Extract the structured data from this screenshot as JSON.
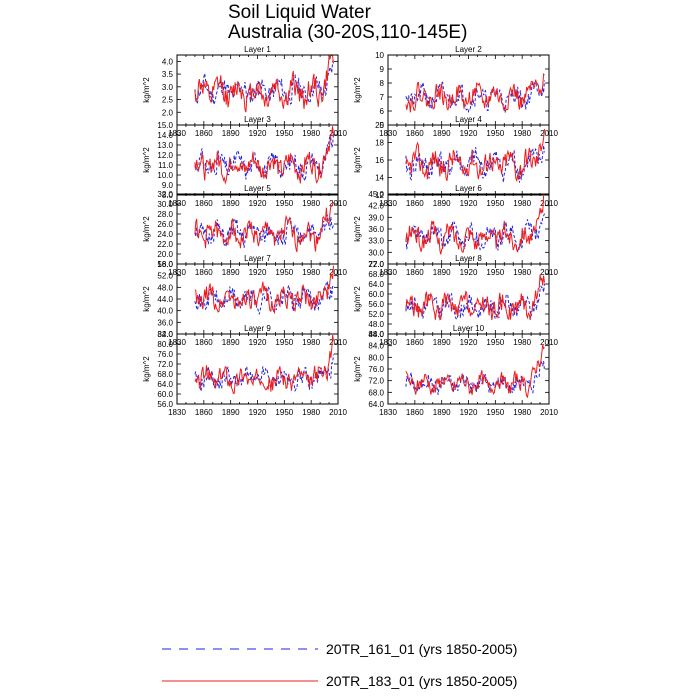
{
  "title": {
    "line1": "Soil Liquid Water",
    "line2": "Australia (30-20S,110-145E)"
  },
  "colors": {
    "series_161": "#2222dd",
    "series_183": "#ee1c1c",
    "axis": "#000000"
  },
  "legend": {
    "items": [
      {
        "label": "20TR_161_01 (yrs 1850-2005)",
        "color": "#2222dd",
        "style": "dashed"
      },
      {
        "label": "20TR_183_01 (yrs 1850-2005)",
        "color": "#ee1c1c",
        "style": "solid"
      }
    ]
  },
  "chart_data": [
    {
      "type": "line",
      "title": "Layer 1",
      "ylabel": "kg/m^2",
      "xlabel": "",
      "xlim": [
        1830,
        2010
      ],
      "x_ticks": [
        "1830",
        "1860",
        "1890",
        "1920",
        "1950",
        "1980",
        "2010"
      ],
      "ylim": [
        1.5,
        4.25
      ],
      "y_ticks": [
        "2.0",
        "2.5",
        "3.0",
        "3.5",
        "4.0"
      ],
      "series": [
        {
          "name": "20TR_161_01",
          "mean": 2.85,
          "amp": 0.45,
          "end": 3.7,
          "seed": 11
        },
        {
          "name": "20TR_183_01",
          "mean": 2.8,
          "amp": 0.55,
          "end": 4.2,
          "seed": 12
        }
      ]
    },
    {
      "type": "line",
      "title": "Layer 2",
      "ylabel": "kg/m^2",
      "xlabel": "",
      "xlim": [
        1830,
        2010
      ],
      "x_ticks": [
        "1830",
        "1860",
        "1890",
        "1920",
        "1950",
        "1980",
        "2010"
      ],
      "ylim": [
        5,
        10
      ],
      "y_ticks": [
        "5",
        "6",
        "7",
        "8",
        "9",
        "10"
      ],
      "series": [
        {
          "name": "20TR_161_01",
          "mean": 7.0,
          "amp": 0.7,
          "end": 8.3,
          "seed": 21
        },
        {
          "name": "20TR_183_01",
          "mean": 7.0,
          "amp": 0.8,
          "end": 9.1,
          "seed": 22
        }
      ]
    },
    {
      "type": "line",
      "title": "Layer 3",
      "ylabel": "kg/m^2",
      "xlabel": "",
      "xlim": [
        1830,
        2010
      ],
      "x_ticks": [
        "1830",
        "1860",
        "1890",
        "1920",
        "1950",
        "1980",
        "2010"
      ],
      "ylim": [
        8,
        15
      ],
      "y_ticks": [
        "8.0",
        "9.0",
        "10.0",
        "11.0",
        "12.0",
        "13.0",
        "14.0",
        "15.0"
      ],
      "series": [
        {
          "name": "20TR_161_01",
          "mean": 11.0,
          "amp": 1.1,
          "end": 13.0,
          "seed": 31
        },
        {
          "name": "20TR_183_01",
          "mean": 11.0,
          "amp": 1.2,
          "end": 14.2,
          "seed": 32
        }
      ]
    },
    {
      "type": "line",
      "title": "Layer 4",
      "ylabel": "kg/m^2",
      "xlabel": "",
      "xlim": [
        1830,
        2010
      ],
      "x_ticks": [
        "1830",
        "1860",
        "1890",
        "1920",
        "1950",
        "1980",
        "2010"
      ],
      "ylim": [
        12,
        20
      ],
      "y_ticks": [
        "12",
        "14",
        "16",
        "18",
        "20"
      ],
      "series": [
        {
          "name": "20TR_161_01",
          "mean": 15.5,
          "amp": 1.4,
          "end": 17.5,
          "seed": 41
        },
        {
          "name": "20TR_183_01",
          "mean": 15.5,
          "amp": 1.5,
          "end": 19.3,
          "seed": 42
        }
      ]
    },
    {
      "type": "line",
      "title": "Layer 5",
      "ylabel": "kg/m^2",
      "xlabel": "",
      "xlim": [
        1830,
        2010
      ],
      "x_ticks": [
        "1830",
        "1860",
        "1890",
        "1920",
        "1950",
        "1980",
        "2010"
      ],
      "ylim": [
        18,
        32
      ],
      "y_ticks": [
        "18.0",
        "20.0",
        "22.0",
        "24.0",
        "26.0",
        "28.0",
        "30.0",
        "32.0"
      ],
      "series": [
        {
          "name": "20TR_161_01",
          "mean": 24.0,
          "amp": 2.2,
          "end": 28.0,
          "seed": 51
        },
        {
          "name": "20TR_183_01",
          "mean": 24.0,
          "amp": 2.4,
          "end": 31.0,
          "seed": 52
        }
      ]
    },
    {
      "type": "line",
      "title": "Layer 6",
      "ylabel": "kg/m^2",
      "xlabel": "",
      "xlim": [
        1830,
        2010
      ],
      "x_ticks": [
        "1830",
        "1860",
        "1890",
        "1920",
        "1950",
        "1980",
        "2010"
      ],
      "ylim": [
        27,
        45
      ],
      "y_ticks": [
        "27.0",
        "30.0",
        "33.0",
        "36.0",
        "39.0",
        "42.0",
        "45.0"
      ],
      "series": [
        {
          "name": "20TR_161_01",
          "mean": 34.0,
          "amp": 2.8,
          "end": 39.0,
          "seed": 61
        },
        {
          "name": "20TR_183_01",
          "mean": 34.0,
          "amp": 3.0,
          "end": 42.5,
          "seed": 62
        }
      ]
    },
    {
      "type": "line",
      "title": "Layer 7",
      "ylabel": "kg/m^2",
      "xlabel": "",
      "xlim": [
        1830,
        2010
      ],
      "x_ticks": [
        "1830",
        "1860",
        "1890",
        "1920",
        "1950",
        "1980",
        "2010"
      ],
      "ylim": [
        32,
        56
      ],
      "y_ticks": [
        "32.0",
        "36.0",
        "40.0",
        "44.0",
        "48.0",
        "52.0",
        "56.0"
      ],
      "series": [
        {
          "name": "20TR_161_01",
          "mean": 44.0,
          "amp": 3.6,
          "end": 50.0,
          "seed": 71
        },
        {
          "name": "20TR_183_01",
          "mean": 44.0,
          "amp": 4.0,
          "end": 54.0,
          "seed": 72
        }
      ]
    },
    {
      "type": "line",
      "title": "Layer 8",
      "ylabel": "kg/m^2",
      "xlabel": "",
      "xlim": [
        1830,
        2010
      ],
      "x_ticks": [
        "1830",
        "1860",
        "1890",
        "1920",
        "1950",
        "1980",
        "2010"
      ],
      "ylim": [
        44,
        72
      ],
      "y_ticks": [
        "44.0",
        "48.0",
        "52.0",
        "56.0",
        "60.0",
        "64.0",
        "68.0",
        "72.0"
      ],
      "series": [
        {
          "name": "20TR_161_01",
          "mean": 55.0,
          "amp": 4.0,
          "end": 62.0,
          "seed": 81
        },
        {
          "name": "20TR_183_01",
          "mean": 55.0,
          "amp": 4.5,
          "end": 68.5,
          "seed": 82
        }
      ]
    },
    {
      "type": "line",
      "title": "Layer 9",
      "ylabel": "kg/m^2",
      "xlabel": "",
      "xlim": [
        1830,
        2010
      ],
      "x_ticks": [
        "1830",
        "1860",
        "1890",
        "1920",
        "1950",
        "1980",
        "2010"
      ],
      "ylim": [
        56,
        84
      ],
      "y_ticks": [
        "56.0",
        "60.0",
        "64.0",
        "68.0",
        "72.0",
        "76.0",
        "80.0",
        "84.0"
      ],
      "series": [
        {
          "name": "20TR_161_01",
          "mean": 66.0,
          "amp": 3.8,
          "end": 74.0,
          "seed": 91
        },
        {
          "name": "20TR_183_01",
          "mean": 66.0,
          "amp": 4.2,
          "end": 81.0,
          "seed": 92
        }
      ]
    },
    {
      "type": "line",
      "title": "Layer 10",
      "ylabel": "kg/m^2",
      "xlabel": "",
      "xlim": [
        1830,
        2010
      ],
      "x_ticks": [
        "1830",
        "1860",
        "1890",
        "1920",
        "1950",
        "1980",
        "2010"
      ],
      "ylim": [
        64,
        88
      ],
      "y_ticks": [
        "64.0",
        "68.0",
        "72.0",
        "76.0",
        "80.0",
        "84.0",
        "88.0"
      ],
      "series": [
        {
          "name": "20TR_161_01",
          "mean": 71.0,
          "amp": 3.0,
          "end": 78.0,
          "seed": 101
        },
        {
          "name": "20TR_183_01",
          "mean": 71.0,
          "amp": 3.2,
          "end": 86.0,
          "seed": 102
        }
      ]
    }
  ]
}
